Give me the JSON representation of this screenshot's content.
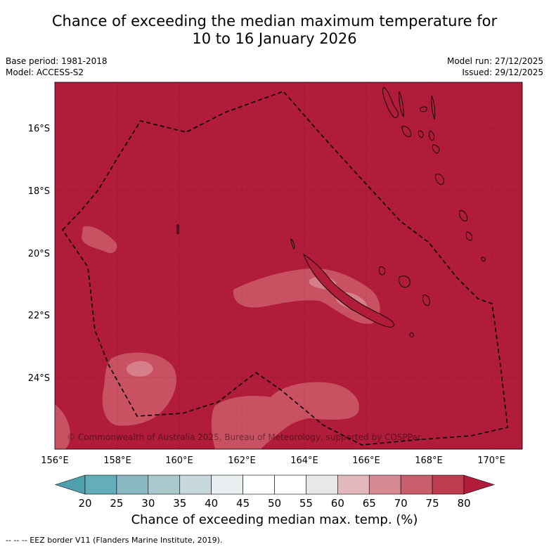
{
  "title_line1": "Chance of exceeding the median maximum temperature for",
  "title_line2": "10 to 16 January 2026",
  "base_period": "Base period: 1981-2018",
  "model": "Model: ACCESS-S2",
  "model_run": "Model run: 27/12/2025",
  "issued": "Issued: 29/12/2025",
  "copyright": "© Commonwealth of Australia 2025, Bureau of Meteorology, supported by COSPPac",
  "lat_labels": [
    "16°S",
    "18°S",
    "20°S",
    "22°S",
    "24°S"
  ],
  "lon_labels": [
    "156°E",
    "158°E",
    "160°E",
    "162°E",
    "164°E",
    "166°E",
    "168°E",
    "170°E"
  ],
  "colorbar": {
    "title": "Chance of exceeding median max. temp. (%)",
    "ticks": [
      "20",
      "25",
      "30",
      "35",
      "40",
      "45",
      "50",
      "55",
      "60",
      "65",
      "70",
      "75",
      "80"
    ],
    "colors": [
      "#64aebb",
      "#8ab8c2",
      "#aac9cd",
      "#c6d8dc",
      "#e8eef0",
      "#ffffff",
      "#ffffff",
      "#e8e8e8",
      "#e3b8bd",
      "#d68a93",
      "#c95f6d",
      "#bd3c4f"
    ],
    "under_color": "#4fa0ae",
    "over_color": "#b01c3a"
  },
  "footnote": "--  --  -- EEZ border V11 (Flanders Marine Institute, 2019).",
  "colors": {
    "map_base": "#b01c3a",
    "map_lighter": "#c85262",
    "map_lightest": "#d67f8a"
  }
}
